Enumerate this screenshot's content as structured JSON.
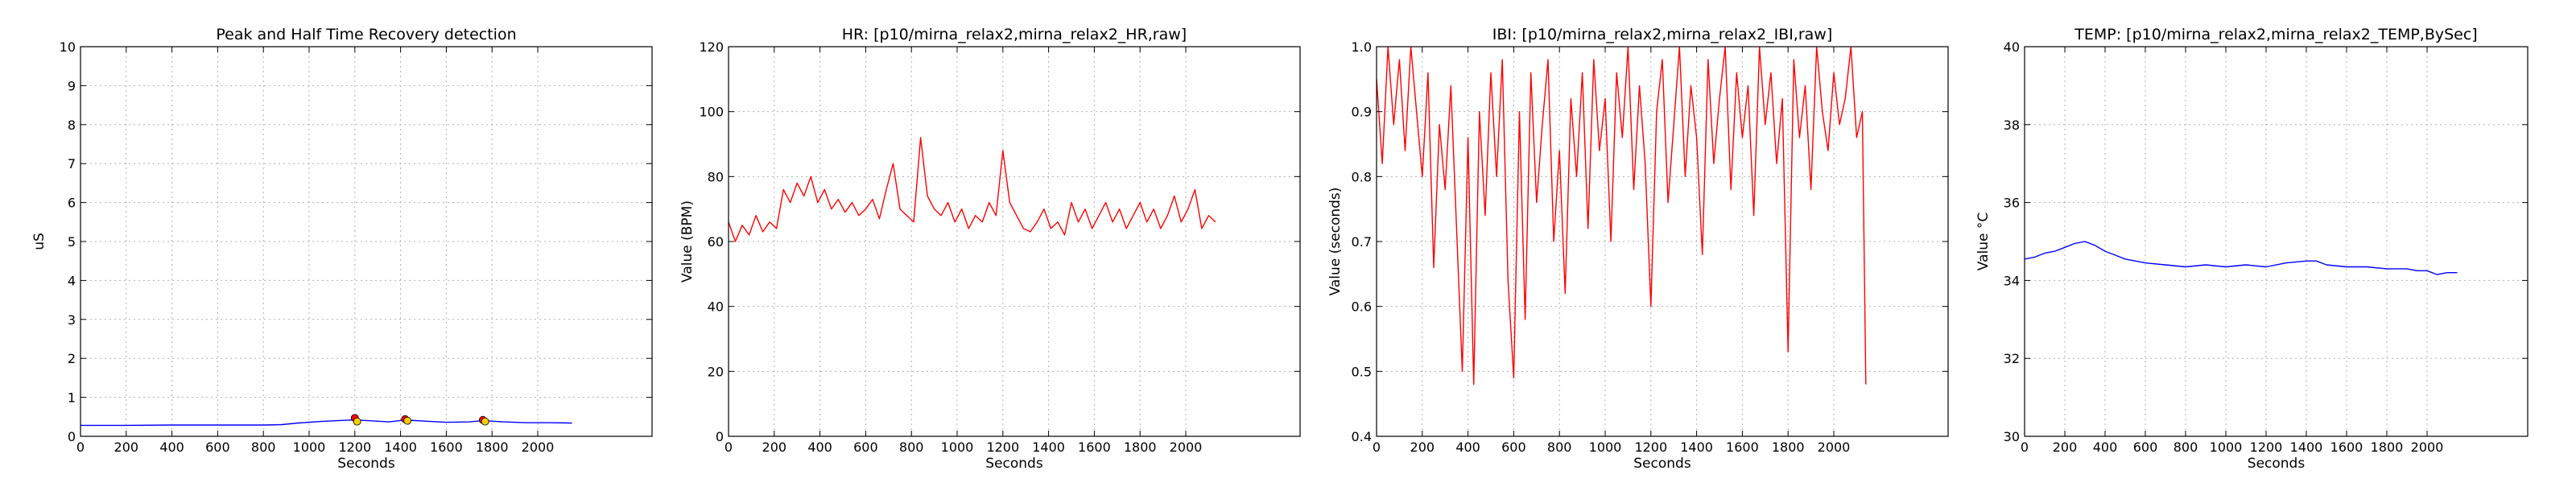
{
  "chart_data": [
    {
      "type": "line",
      "title": "Peak and Half Time Recovery detection",
      "xlabel": "Seconds",
      "ylabel": "uS",
      "xlim": [
        0,
        2500
      ],
      "ylim": [
        0,
        10
      ],
      "xticks": [
        "0",
        "200",
        "400",
        "600",
        "800",
        "1000",
        "1200",
        "1400",
        "1600",
        "1800",
        "2000"
      ],
      "yticks": [
        "0",
        "1",
        "2",
        "3",
        "4",
        "5",
        "6",
        "7",
        "8",
        "9",
        "10"
      ],
      "grid": true,
      "series": [
        {
          "color": "#0000ff",
          "x": [
            0,
            200,
            400,
            600,
            800,
            880,
            950,
            1050,
            1150,
            1200,
            1260,
            1350,
            1420,
            1500,
            1600,
            1700,
            1760,
            1850,
            1950,
            2050,
            2150
          ],
          "y": [
            0.28,
            0.28,
            0.29,
            0.29,
            0.29,
            0.3,
            0.34,
            0.38,
            0.41,
            0.42,
            0.4,
            0.37,
            0.42,
            0.39,
            0.36,
            0.37,
            0.4,
            0.37,
            0.35,
            0.35,
            0.34
          ]
        }
      ],
      "markers": [
        {
          "color": "#ff0000",
          "x": [
            1200,
            1420,
            1760
          ],
          "y": [
            0.47,
            0.44,
            0.42
          ]
        },
        {
          "color": "#ffcc00",
          "x": [
            1210,
            1430,
            1770
          ],
          "y": [
            0.38,
            0.4,
            0.38
          ]
        }
      ]
    },
    {
      "type": "line",
      "title": "HR: [p10/mirna_relax2,mirna_relax2_HR,raw]",
      "xlabel": "Seconds",
      "ylabel": "Value (BPM)",
      "xlim": [
        0,
        2500
      ],
      "ylim": [
        0,
        120
      ],
      "xticks": [
        "0",
        "200",
        "400",
        "600",
        "800",
        "1000",
        "1200",
        "1400",
        "1600",
        "1800",
        "2000"
      ],
      "yticks": [
        "0",
        "20",
        "40",
        "60",
        "80",
        "100",
        "120"
      ],
      "grid": true,
      "series": [
        {
          "color": "#ff0000",
          "x": [
            0,
            30,
            60,
            90,
            120,
            150,
            180,
            210,
            240,
            270,
            300,
            330,
            360,
            390,
            420,
            450,
            480,
            510,
            540,
            570,
            600,
            630,
            660,
            690,
            720,
            750,
            780,
            810,
            840,
            870,
            900,
            930,
            960,
            990,
            1020,
            1050,
            1080,
            1110,
            1140,
            1170,
            1200,
            1230,
            1260,
            1290,
            1320,
            1350,
            1380,
            1410,
            1440,
            1470,
            1500,
            1530,
            1560,
            1590,
            1620,
            1650,
            1680,
            1710,
            1740,
            1770,
            1800,
            1830,
            1860,
            1890,
            1920,
            1950,
            1980,
            2010,
            2040,
            2070,
            2100,
            2130
          ],
          "y": [
            66,
            60,
            65,
            62,
            68,
            63,
            66,
            64,
            76,
            72,
            78,
            74,
            80,
            72,
            76,
            70,
            73,
            69,
            72,
            68,
            70,
            73,
            67,
            76,
            84,
            70,
            68,
            66,
            92,
            74,
            70,
            68,
            72,
            66,
            70,
            64,
            68,
            66,
            72,
            68,
            88,
            72,
            68,
            64,
            63,
            66,
            70,
            64,
            66,
            62,
            72,
            66,
            70,
            64,
            68,
            72,
            66,
            70,
            64,
            68,
            72,
            66,
            70,
            64,
            68,
            74,
            66,
            70,
            76,
            64,
            68,
            66
          ]
        }
      ]
    },
    {
      "type": "line",
      "title": "IBI: [p10/mirna_relax2,mirna_relax2_IBI,raw]",
      "xlabel": "Seconds",
      "ylabel": "Value (seconds)",
      "xlim": [
        0,
        2500
      ],
      "ylim": [
        0.4,
        1.0
      ],
      "xticks": [
        "0",
        "200",
        "400",
        "600",
        "800",
        "1000",
        "1200",
        "1400",
        "1600",
        "1800",
        "2000"
      ],
      "yticks": [
        "0.4",
        "0.5",
        "0.6",
        "0.7",
        "0.8",
        "0.9",
        "1.0"
      ],
      "grid": true,
      "series": [
        {
          "color": "#ff0000",
          "x": [
            0,
            25,
            50,
            75,
            100,
            125,
            150,
            175,
            200,
            225,
            250,
            275,
            300,
            325,
            350,
            375,
            400,
            425,
            450,
            475,
            500,
            525,
            550,
            575,
            600,
            625,
            650,
            675,
            700,
            725,
            750,
            775,
            800,
            825,
            850,
            875,
            900,
            925,
            950,
            975,
            1000,
            1025,
            1050,
            1075,
            1100,
            1125,
            1150,
            1175,
            1200,
            1225,
            1250,
            1275,
            1300,
            1325,
            1350,
            1375,
            1400,
            1425,
            1450,
            1475,
            1500,
            1525,
            1550,
            1575,
            1600,
            1625,
            1650,
            1675,
            1700,
            1725,
            1750,
            1775,
            1800,
            1825,
            1850,
            1875,
            1900,
            1925,
            1950,
            1975,
            2000,
            2025,
            2050,
            2075,
            2100,
            2125,
            2140
          ],
          "y": [
            0.95,
            0.82,
            1.0,
            0.88,
            0.98,
            0.84,
            1.0,
            0.9,
            0.8,
            0.96,
            0.66,
            0.88,
            0.78,
            0.94,
            0.72,
            0.5,
            0.86,
            0.48,
            0.9,
            0.74,
            0.96,
            0.8,
            0.98,
            0.64,
            0.49,
            0.9,
            0.58,
            0.96,
            0.76,
            0.88,
            0.98,
            0.7,
            0.84,
            0.62,
            0.92,
            0.8,
            0.96,
            0.72,
            0.98,
            0.84,
            0.92,
            0.7,
            0.96,
            0.86,
            1.0,
            0.78,
            0.94,
            0.82,
            0.6,
            0.9,
            0.98,
            0.76,
            0.88,
            1.0,
            0.8,
            0.94,
            0.86,
            0.68,
            0.98,
            0.82,
            0.92,
            1.0,
            0.78,
            0.96,
            0.86,
            0.94,
            0.74,
            1.0,
            0.88,
            0.96,
            0.82,
            0.92,
            0.53,
            0.98,
            0.86,
            0.94,
            0.78,
            1.0,
            0.9,
            0.84,
            0.96,
            0.88,
            0.92,
            1.0,
            0.86,
            0.9,
            0.48
          ]
        }
      ]
    },
    {
      "type": "line",
      "title": "TEMP: [p10/mirna_relax2,mirna_relax2_TEMP,BySec]",
      "xlabel": "Seconds",
      "ylabel": "Value °C",
      "xlim": [
        0,
        2500
      ],
      "ylim": [
        30,
        40
      ],
      "xticks": [
        "0",
        "200",
        "400",
        "600",
        "800",
        "1000",
        "1200",
        "1400",
        "1600",
        "1800",
        "2000"
      ],
      "yticks": [
        "30",
        "32",
        "34",
        "36",
        "38",
        "40"
      ],
      "grid": true,
      "series": [
        {
          "color": "#0000ff",
          "x": [
            0,
            50,
            100,
            150,
            200,
            250,
            300,
            350,
            400,
            450,
            500,
            600,
            700,
            800,
            900,
            1000,
            1100,
            1200,
            1300,
            1400,
            1450,
            1500,
            1600,
            1700,
            1800,
            1900,
            1950,
            2000,
            2050,
            2100,
            2150
          ],
          "y": [
            34.55,
            34.6,
            34.7,
            34.75,
            34.85,
            34.95,
            35.0,
            34.9,
            34.75,
            34.65,
            34.55,
            34.45,
            34.4,
            34.35,
            34.4,
            34.35,
            34.4,
            34.35,
            34.45,
            34.5,
            34.5,
            34.4,
            34.35,
            34.35,
            34.3,
            34.3,
            34.25,
            34.25,
            34.15,
            34.2,
            34.2
          ]
        }
      ]
    }
  ]
}
